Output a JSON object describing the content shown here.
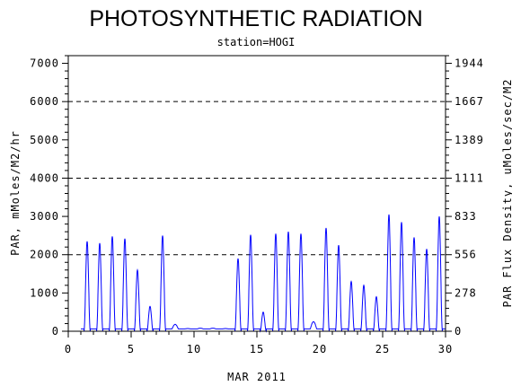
{
  "chart_data": {
    "type": "line",
    "title": "PHOTOSYNTHETIC RADIATION",
    "subtitle": "station=HOGI",
    "xlabel": "MAR 2011",
    "ylabel_left": "PAR, mMoles/M2/hr",
    "ylabel_right": "PAR Flux Density, uMoles/sec/M2",
    "xlim": [
      0,
      30
    ],
    "ylim": [
      0,
      7200
    ],
    "x_ticks": [
      "0",
      "5",
      "10",
      "15",
      "20",
      "25",
      "30"
    ],
    "x_tick_values": [
      0,
      5,
      10,
      15,
      20,
      25,
      30
    ],
    "y_ticks_left": [
      "0",
      "1000",
      "2000",
      "3000",
      "4000",
      "5000",
      "6000",
      "7000"
    ],
    "y_tick_values_left": [
      0,
      1000,
      2000,
      3000,
      4000,
      5000,
      6000,
      7000
    ],
    "y_ticks_right": [
      "0",
      "278",
      "556",
      "833",
      "1111",
      "1389",
      "1667",
      "1944"
    ],
    "y_tick_values_right": [
      0,
      1000,
      2000,
      3000,
      4000,
      5000,
      6000,
      7000
    ],
    "dashed_gridlines_y": [
      2000,
      4000,
      6000
    ],
    "series_color": "#0000ff",
    "series": [
      {
        "daily_peaks": [
          [
            1.5,
            2350
          ],
          [
            2.5,
            2300
          ],
          [
            3.5,
            2480
          ],
          [
            4.5,
            2420
          ],
          [
            5.5,
            1600
          ],
          [
            6.5,
            650
          ],
          [
            7.5,
            2500
          ],
          [
            8.5,
            180
          ],
          [
            9.5,
            70
          ],
          [
            10.5,
            80
          ],
          [
            11.5,
            80
          ],
          [
            12.5,
            70
          ],
          [
            13.5,
            1900
          ],
          [
            14.5,
            2520
          ],
          [
            15.5,
            500
          ],
          [
            16.5,
            2550
          ],
          [
            17.5,
            2600
          ],
          [
            18.5,
            2550
          ],
          [
            19.5,
            250
          ],
          [
            20.5,
            2700
          ],
          [
            21.5,
            2250
          ],
          [
            22.5,
            1300
          ],
          [
            23.5,
            1200
          ],
          [
            24.5,
            900
          ],
          [
            25.5,
            3050
          ],
          [
            26.5,
            2850
          ],
          [
            27.5,
            2450
          ],
          [
            28.5,
            2150
          ],
          [
            29.5,
            3000
          ]
        ]
      }
    ]
  }
}
